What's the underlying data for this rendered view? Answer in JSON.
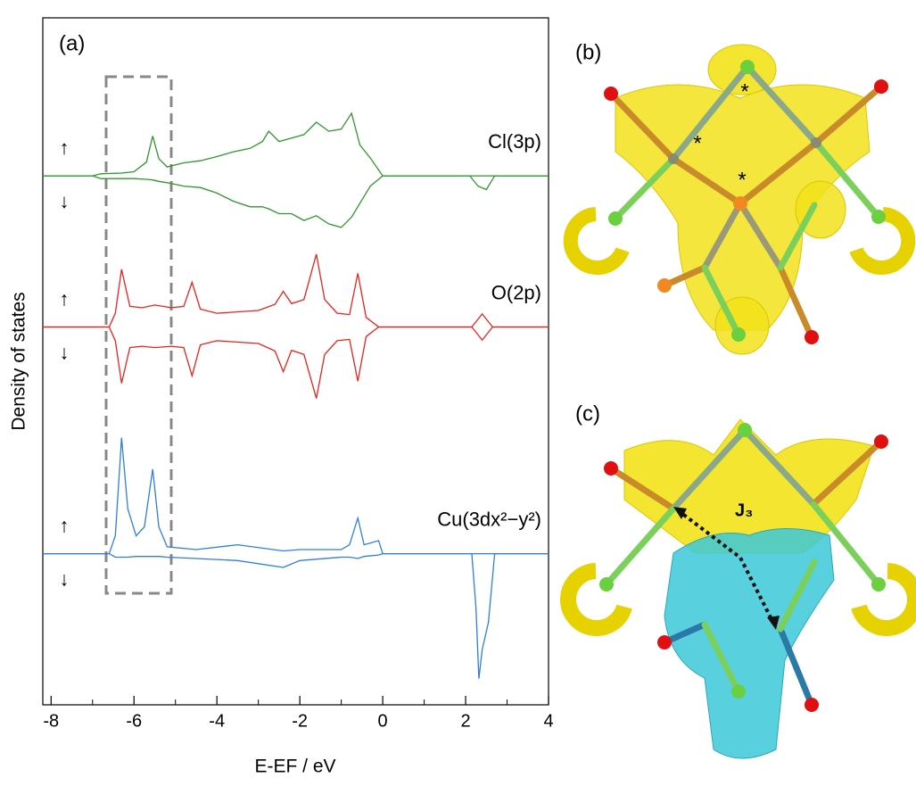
{
  "chart_data": {
    "type": "line",
    "panel_label": "(a)",
    "x_label": "E-EF / eV",
    "y_label": "Density of states",
    "xlim": [
      -8.2,
      4
    ],
    "ylim": [
      0,
      100
    ],
    "xticks": [
      -8,
      -6,
      -4,
      -2,
      0,
      2,
      4
    ],
    "xminorticks": [
      -7,
      -5,
      -3,
      -1,
      1,
      3
    ],
    "spin_labels": [
      "↑",
      "↓"
    ],
    "series": [
      {
        "name": "Cl(3p)",
        "color": "#2e962e",
        "x": [
          -8.2,
          -7,
          -6.8,
          -6.3,
          -6,
          -5.7,
          -5.55,
          -5.4,
          -5.2,
          -4.8,
          -4.4,
          -4,
          -3.6,
          -3.2,
          -2.9,
          -2.75,
          -2.5,
          -2.2,
          -1.9,
          -1.6,
          -1.3,
          -1.0,
          -0.75,
          -0.55,
          -0.3,
          0,
          2.1,
          2.3,
          2.5,
          2.7,
          4
        ],
        "up": [
          77,
          77,
          77.3,
          77.4,
          77.6,
          79,
          82.8,
          79.5,
          78.3,
          78.9,
          79.2,
          79.8,
          80.5,
          81,
          82,
          83.5,
          82,
          82.5,
          83,
          84.8,
          83.5,
          83.8,
          86.1,
          81.5,
          79.6,
          77,
          77,
          77,
          77,
          77,
          77
        ],
        "down": [
          77,
          77,
          76.6,
          76.6,
          76.6,
          76.5,
          76.4,
          76.2,
          76,
          75.5,
          75.3,
          74.5,
          73.3,
          72.5,
          72.5,
          72.2,
          71.5,
          71.5,
          70.5,
          71.2,
          70,
          69.5,
          71,
          73,
          75.5,
          77,
          77,
          75.5,
          75,
          77,
          77
        ]
      },
      {
        "name": "O(2p)",
        "color": "#e8221c",
        "x": [
          -8.2,
          -6.6,
          -6.45,
          -6.3,
          -6.1,
          -5.8,
          -5.5,
          -5.1,
          -4.8,
          -4.6,
          -4.4,
          -4.0,
          -3.0,
          -2.6,
          -2.4,
          -2.2,
          -1.9,
          -1.6,
          -1.4,
          -1.1,
          -0.8,
          -0.6,
          -0.4,
          -0.1,
          2.15,
          2.4,
          2.65,
          4
        ],
        "up": [
          55,
          55,
          57,
          63.4,
          58,
          57.8,
          58.2,
          57.8,
          58,
          61.5,
          57.6,
          57,
          57.4,
          58.3,
          60.2,
          58.4,
          59,
          65.6,
          59,
          57,
          56.8,
          62.8,
          56.4,
          55,
          55,
          56.9,
          55,
          55
        ],
        "down": [
          55,
          55,
          53,
          46.8,
          52,
          52.2,
          52,
          52.2,
          52,
          47.9,
          52.4,
          53,
          52.6,
          51.5,
          48.5,
          51.6,
          51,
          44.6,
          51,
          53,
          53.2,
          47.1,
          53.6,
          55,
          55,
          53.1,
          55,
          55
        ]
      },
      {
        "name": "Cu(3dx²−y²)",
        "color": "#2f7fd8",
        "x": [
          -8.2,
          -6.6,
          -6.45,
          -6.3,
          -6.15,
          -5.95,
          -5.75,
          -5.55,
          -5.4,
          -5.2,
          -4.5,
          -3.5,
          -2.4,
          -2,
          -1,
          -0.8,
          -0.6,
          -0.45,
          -0.1,
          0,
          2.15,
          2.25,
          2.32,
          2.4,
          2.55,
          2.7,
          4
        ],
        "up": [
          22,
          22,
          24.6,
          38.9,
          28.5,
          24.6,
          25.9,
          34.3,
          25.9,
          23,
          22.6,
          23.3,
          22.4,
          22.6,
          22.6,
          23.3,
          27.2,
          23.3,
          23.9,
          22,
          22,
          22,
          22,
          22,
          22,
          22,
          22
        ],
        "down": [
          22,
          22,
          21.5,
          21.5,
          21.5,
          21.6,
          21.6,
          21.6,
          21.6,
          21.5,
          21.3,
          21,
          20,
          21,
          21.5,
          21.5,
          21.3,
          21.6,
          21.8,
          22,
          22,
          14,
          3.8,
          8,
          12,
          22,
          22
        ]
      }
    ]
  },
  "panel_b": {
    "label": "(b)",
    "marks": [
      "*",
      "*",
      "*"
    ]
  },
  "panel_c": {
    "label": "(c)",
    "annotation": "J₃"
  }
}
